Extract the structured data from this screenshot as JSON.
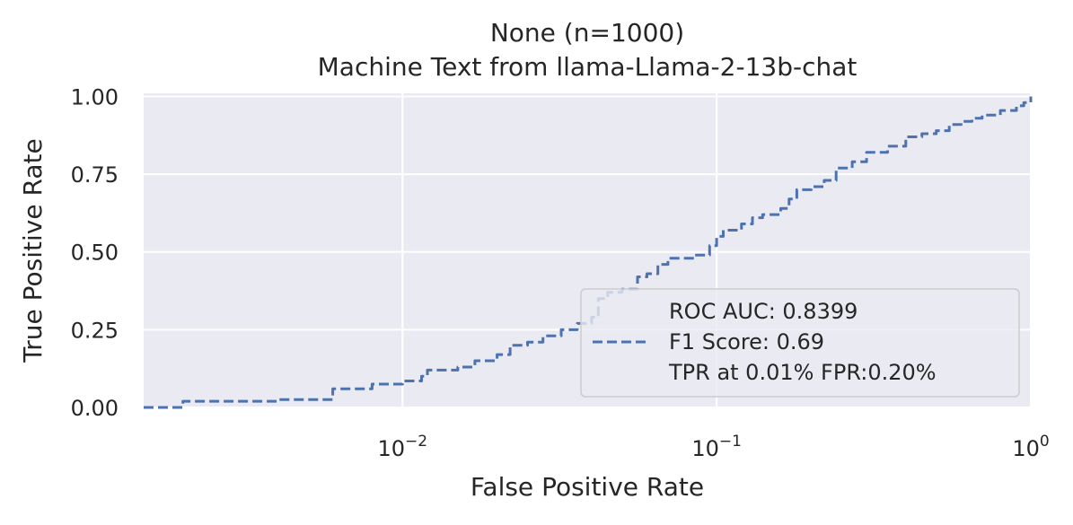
{
  "chart_data": {
    "type": "line",
    "title": "None (n=1000)",
    "subtitle": "Machine Text from llama-Llama-2-13b-chat",
    "xlabel": "False Positive Rate",
    "ylabel": "True Positive Rate",
    "xscale": "log",
    "xlim": [
      0.0015,
      1.0
    ],
    "ylim": [
      0.0,
      1.01
    ],
    "x_ticks": [
      {
        "value": 0.01,
        "base": "10",
        "exp": "−2"
      },
      {
        "value": 0.1,
        "base": "10",
        "exp": "−1"
      },
      {
        "value": 1.0,
        "base": "10",
        "exp": "0"
      }
    ],
    "y_ticks": [
      {
        "value": 0.0,
        "label": "0.00"
      },
      {
        "value": 0.25,
        "label": "0.25"
      },
      {
        "value": 0.5,
        "label": "0.50"
      },
      {
        "value": 0.75,
        "label": "0.75"
      },
      {
        "value": 1.0,
        "label": "1.00"
      }
    ],
    "grid": true,
    "legend_position": "lower right",
    "legend_lines": [
      "ROC AUC: 0.8399",
      "F1 Score: 0.69",
      "TPR at 0.01% FPR:0.20%"
    ],
    "series": [
      {
        "style": "dashed",
        "color": "#4c72b0",
        "points": [
          [
            0.0015,
            0.0
          ],
          [
            0.002,
            0.0
          ],
          [
            0.002,
            0.02
          ],
          [
            0.0035,
            0.02
          ],
          [
            0.004,
            0.025
          ],
          [
            0.006,
            0.03
          ],
          [
            0.006,
            0.06
          ],
          [
            0.0075,
            0.06
          ],
          [
            0.008,
            0.075
          ],
          [
            0.01,
            0.085
          ],
          [
            0.0115,
            0.1
          ],
          [
            0.012,
            0.12
          ],
          [
            0.015,
            0.13
          ],
          [
            0.017,
            0.15
          ],
          [
            0.02,
            0.17
          ],
          [
            0.022,
            0.2
          ],
          [
            0.025,
            0.21
          ],
          [
            0.028,
            0.23
          ],
          [
            0.032,
            0.25
          ],
          [
            0.036,
            0.27
          ],
          [
            0.04,
            0.29
          ],
          [
            0.042,
            0.35
          ],
          [
            0.045,
            0.37
          ],
          [
            0.05,
            0.38
          ],
          [
            0.056,
            0.42
          ],
          [
            0.06,
            0.43
          ],
          [
            0.065,
            0.46
          ],
          [
            0.07,
            0.48
          ],
          [
            0.085,
            0.49
          ],
          [
            0.095,
            0.52
          ],
          [
            0.1,
            0.55
          ],
          [
            0.105,
            0.57
          ],
          [
            0.12,
            0.59
          ],
          [
            0.13,
            0.61
          ],
          [
            0.14,
            0.62
          ],
          [
            0.16,
            0.64
          ],
          [
            0.17,
            0.67
          ],
          [
            0.18,
            0.7
          ],
          [
            0.2,
            0.71
          ],
          [
            0.22,
            0.73
          ],
          [
            0.24,
            0.77
          ],
          [
            0.27,
            0.79
          ],
          [
            0.3,
            0.82
          ],
          [
            0.35,
            0.84
          ],
          [
            0.4,
            0.87
          ],
          [
            0.45,
            0.88
          ],
          [
            0.5,
            0.89
          ],
          [
            0.55,
            0.91
          ],
          [
            0.6,
            0.92
          ],
          [
            0.65,
            0.93
          ],
          [
            0.7,
            0.94
          ],
          [
            0.8,
            0.955
          ],
          [
            0.9,
            0.97
          ],
          [
            0.95,
            0.98
          ],
          [
            1.0,
            1.0
          ]
        ]
      }
    ]
  }
}
